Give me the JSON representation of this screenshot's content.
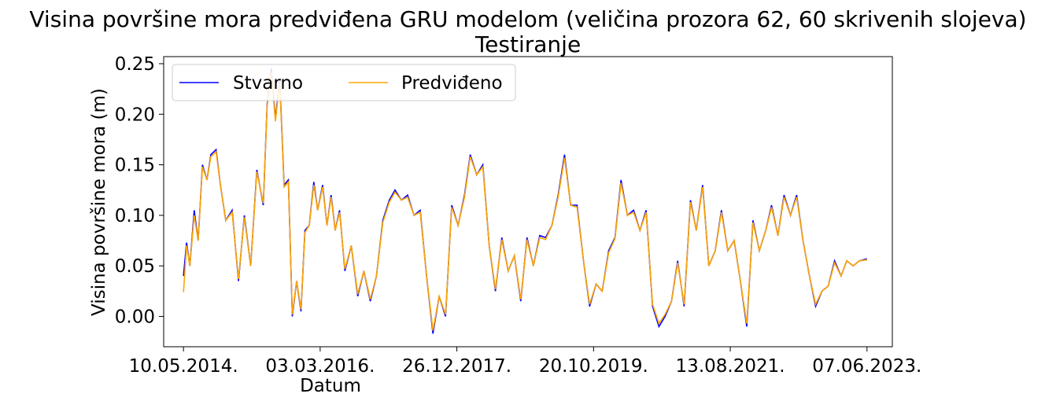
{
  "chart_data": {
    "type": "line",
    "title": "Visina površine mora predviđena GRU modelom (veličina prozora 62, 60 skrivenih slojeva)",
    "subtitle": "Testiranje",
    "xlabel": "Datum",
    "ylabel": "Visina površine mora (m)",
    "ylim": [
      -0.03,
      0.257
    ],
    "yticks": [
      "0.00",
      "0.05",
      "0.10",
      "0.15",
      "0.20",
      "0.25"
    ],
    "ytick_values": [
      0.0,
      0.05,
      0.1,
      0.15,
      0.2,
      0.25
    ],
    "xticks": [
      "10.05.2014.",
      "03.03.2016.",
      "26.12.2017.",
      "20.10.2019.",
      "13.08.2021.",
      "07.06.2023."
    ],
    "xlim": [
      "2014-02-03",
      "2023-10-08"
    ],
    "grid": false,
    "legend": {
      "placement": "upper-left",
      "columns": 2
    },
    "colors": {
      "actual": "#0000ff",
      "predicted": "#ffa500"
    },
    "x": [
      "2014-05-10",
      "2014-05-25",
      "2014-06-10",
      "2014-07-01",
      "2014-07-20",
      "2014-08-10",
      "2014-09-01",
      "2014-09-20",
      "2014-10-15",
      "2014-11-05",
      "2014-12-01",
      "2015-01-01",
      "2015-02-01",
      "2015-03-01",
      "2015-04-01",
      "2015-05-01",
      "2015-06-01",
      "2015-06-20",
      "2015-07-10",
      "2015-07-30",
      "2015-08-20",
      "2015-09-10",
      "2015-10-01",
      "2015-10-20",
      "2015-11-10",
      "2015-12-01",
      "2015-12-20",
      "2016-01-10",
      "2016-02-01",
      "2016-02-20",
      "2016-03-15",
      "2016-04-05",
      "2016-04-25",
      "2016-05-15",
      "2016-06-05",
      "2016-07-01",
      "2016-08-01",
      "2016-09-01",
      "2016-10-01",
      "2016-11-01",
      "2016-12-01",
      "2017-01-01",
      "2017-02-01",
      "2017-03-01",
      "2017-04-01",
      "2017-05-01",
      "2017-06-01",
      "2017-07-01",
      "2017-08-01",
      "2017-09-01",
      "2017-10-01",
      "2017-11-01",
      "2017-12-01",
      "2018-01-01",
      "2018-02-01",
      "2018-03-01",
      "2018-04-01",
      "2018-05-01",
      "2018-06-01",
      "2018-07-01",
      "2018-08-01",
      "2018-09-01",
      "2018-10-01",
      "2018-11-01",
      "2018-12-01",
      "2019-01-01",
      "2019-02-01",
      "2019-03-01",
      "2019-04-01",
      "2019-05-01",
      "2019-06-01",
      "2019-07-01",
      "2019-08-01",
      "2019-09-01",
      "2019-10-01",
      "2019-11-01",
      "2019-12-01",
      "2020-01-01",
      "2020-02-01",
      "2020-03-01",
      "2020-04-01",
      "2020-05-01",
      "2020-06-01",
      "2020-07-01",
      "2020-08-01",
      "2020-09-01",
      "2020-10-01",
      "2020-11-01",
      "2020-12-01",
      "2021-01-01",
      "2021-02-01",
      "2021-03-01",
      "2021-04-01",
      "2021-05-01",
      "2021-06-01",
      "2021-07-01",
      "2021-08-01",
      "2021-09-01",
      "2021-10-01",
      "2021-11-01",
      "2021-12-01",
      "2022-01-01",
      "2022-02-01",
      "2022-03-01",
      "2022-04-01",
      "2022-05-01",
      "2022-06-01",
      "2022-07-01",
      "2022-08-01",
      "2022-09-01",
      "2022-10-01",
      "2022-11-01",
      "2022-12-01",
      "2023-01-01",
      "2023-02-01",
      "2023-03-01",
      "2023-04-01",
      "2023-05-01",
      "2023-06-07"
    ],
    "series": [
      {
        "name": "Stvarno",
        "values": [
          0.04,
          0.073,
          0.05,
          0.105,
          0.075,
          0.15,
          0.135,
          0.16,
          0.165,
          0.13,
          0.095,
          0.105,
          0.035,
          0.1,
          0.05,
          0.145,
          0.11,
          0.21,
          0.245,
          0.195,
          0.235,
          0.13,
          0.135,
          0.0,
          0.035,
          0.005,
          0.085,
          0.09,
          0.133,
          0.105,
          0.13,
          0.09,
          0.12,
          0.085,
          0.105,
          0.045,
          0.07,
          0.02,
          0.045,
          0.015,
          0.04,
          0.095,
          0.115,
          0.125,
          0.115,
          0.12,
          0.1,
          0.105,
          0.04,
          -0.017,
          0.02,
          0.0,
          0.11,
          0.09,
          0.12,
          0.16,
          0.14,
          0.15,
          0.07,
          0.025,
          0.078,
          0.045,
          0.06,
          0.015,
          0.078,
          0.05,
          0.08,
          0.078,
          0.09,
          0.12,
          0.16,
          0.11,
          0.11,
          0.055,
          0.01,
          0.032,
          0.025,
          0.065,
          0.078,
          0.135,
          0.1,
          0.105,
          0.085,
          0.105,
          0.01,
          -0.01,
          0.0,
          0.015,
          0.055,
          0.01,
          0.115,
          0.085,
          0.13,
          0.05,
          0.065,
          0.105,
          0.065,
          0.075,
          0.035,
          -0.01,
          0.095,
          0.065,
          0.085,
          0.11,
          0.08,
          0.12,
          0.1,
          0.12,
          0.075,
          0.04,
          0.01,
          0.025,
          0.03,
          0.055,
          0.04,
          0.055,
          0.05,
          0.055,
          0.057
        ]
      },
      {
        "name": "Predviđeno",
        "values": [
          0.024,
          0.07,
          0.05,
          0.1,
          0.075,
          0.148,
          0.135,
          0.158,
          0.163,
          0.13,
          0.095,
          0.103,
          0.037,
          0.098,
          0.05,
          0.143,
          0.112,
          0.208,
          0.242,
          0.193,
          0.232,
          0.128,
          0.133,
          0.002,
          0.035,
          0.007,
          0.083,
          0.09,
          0.13,
          0.105,
          0.128,
          0.09,
          0.118,
          0.085,
          0.103,
          0.047,
          0.07,
          0.022,
          0.045,
          0.017,
          0.04,
          0.093,
          0.113,
          0.123,
          0.115,
          0.118,
          0.1,
          0.103,
          0.04,
          -0.014,
          0.02,
          0.002,
          0.108,
          0.09,
          0.118,
          0.158,
          0.14,
          0.148,
          0.07,
          0.027,
          0.076,
          0.045,
          0.06,
          0.017,
          0.076,
          0.05,
          0.078,
          0.076,
          0.09,
          0.118,
          0.157,
          0.11,
          0.108,
          0.055,
          0.012,
          0.032,
          0.025,
          0.063,
          0.077,
          0.132,
          0.1,
          0.103,
          0.085,
          0.103,
          0.012,
          -0.007,
          0.002,
          0.015,
          0.053,
          0.012,
          0.113,
          0.085,
          0.128,
          0.05,
          0.065,
          0.103,
          0.065,
          0.075,
          0.035,
          -0.007,
          0.093,
          0.065,
          0.085,
          0.108,
          0.08,
          0.118,
          0.1,
          0.118,
          0.075,
          0.04,
          0.012,
          0.025,
          0.03,
          0.053,
          0.04,
          0.055,
          0.05,
          0.055,
          0.056
        ]
      }
    ]
  }
}
